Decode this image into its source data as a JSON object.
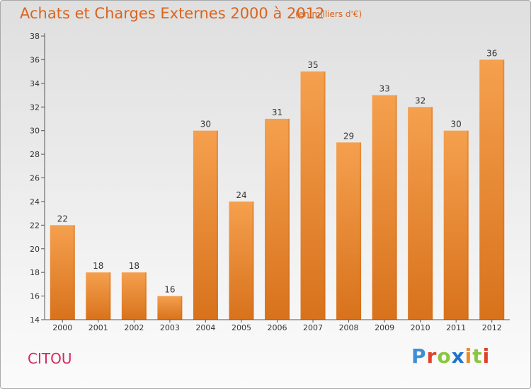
{
  "header": {
    "title": "Achats et Charges Externes 2000 à 2012",
    "subtitle": "(en milliers d'€)"
  },
  "footer": {
    "commune": "CITOU",
    "brand": [
      "P",
      "r",
      "o",
      "x",
      "i",
      "t",
      "i"
    ]
  },
  "colors": {
    "bar_top": "#f5a04e",
    "bar_bottom": "#d8721c",
    "title": "#d9641e",
    "commune": "#d7295e",
    "brand": [
      "#3b8fd6",
      "#e2402d",
      "#8cc63f",
      "#1f75c9",
      "#f08a1c",
      "#8cc63f",
      "#e2402d"
    ]
  },
  "chart_data": {
    "type": "bar",
    "categories": [
      "2000",
      "2001",
      "2002",
      "2003",
      "2004",
      "2005",
      "2006",
      "2007",
      "2008",
      "2009",
      "2010",
      "2011",
      "2012"
    ],
    "values": [
      22,
      18,
      18,
      16,
      30,
      24,
      31,
      35,
      29,
      33,
      32,
      30,
      36
    ],
    "ylim": [
      14,
      38
    ],
    "yticks": [
      14,
      16,
      18,
      20,
      22,
      24,
      26,
      28,
      30,
      32,
      34,
      36,
      38
    ],
    "grid": false,
    "legend": "none"
  }
}
